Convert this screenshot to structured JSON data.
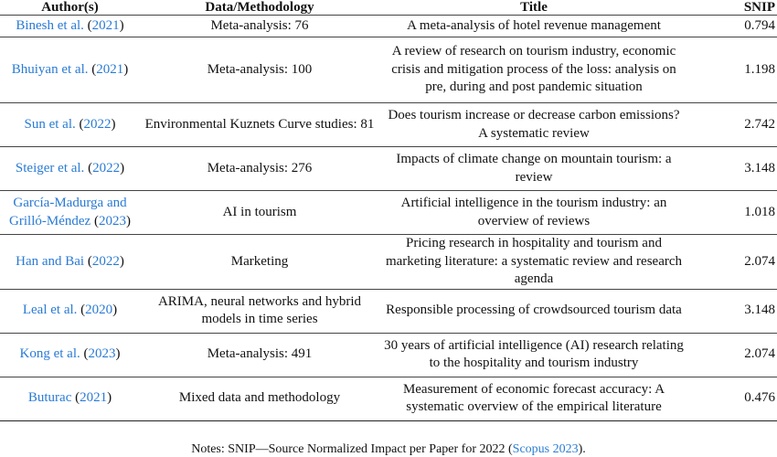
{
  "table": {
    "headers": [
      "Author(s)",
      "Data/Methodology",
      "Title",
      "SNIP"
    ],
    "rows": [
      {
        "author": "Binesh et al.",
        "year": "2021",
        "method": "Meta-analysis: 76",
        "title": "A meta-analysis of hotel revenue management",
        "snip": "0.794"
      },
      {
        "author": "Bhuiyan et al.",
        "year": "2021",
        "method": "Meta-analysis: 100",
        "title": "A review of research on tourism industry, economic crisis and mitigation process of the loss: analysis on pre, during and post pandemic situation",
        "snip": "1.198"
      },
      {
        "author": "Sun et al.",
        "year": "2022",
        "method": "Environmental Kuznets Curve studies: 81",
        "title": "Does tourism increase or decrease carbon emissions? A systematic review",
        "snip": "2.742"
      },
      {
        "author": "Steiger et al.",
        "year": "2022",
        "method": "Meta-analysis: 276",
        "title": "Impacts of climate change on mountain tourism: a review",
        "snip": "3.148"
      },
      {
        "author": "García-Madurga and Grilló-Méndez",
        "year": "2023",
        "method": "AI in tourism",
        "title": "Artificial intelligence in the tourism industry: an overview of reviews",
        "snip": "1.018"
      },
      {
        "author": "Han and Bai",
        "year": "2022",
        "method": "Marketing",
        "title": "Pricing research in hospitality and tourism and marketing literature: a systematic review and research agenda",
        "snip": "2.074"
      },
      {
        "author": "Leal et al.",
        "year": "2020",
        "method": "ARIMA, neural networks and hybrid models in time series",
        "title": "Responsible processing of crowdsourced tourism data",
        "snip": "3.148"
      },
      {
        "author": "Kong et al.",
        "year": "2023",
        "method": "Meta-analysis: 491",
        "title": "30 years of artificial intelligence (AI) research relating to the hospitality and tourism industry",
        "snip": "2.074"
      },
      {
        "author": "Buturac",
        "year": "2021",
        "method": "Mixed data and methodology",
        "title": "Measurement of economic forecast accuracy: A systematic overview of the empirical literature",
        "snip": "0.476"
      }
    ]
  },
  "note": {
    "prefix": "Notes: SNIP—Source Normalized Impact per Paper for 2022 (",
    "link": "Scopus 2023",
    "suffix": ")."
  }
}
